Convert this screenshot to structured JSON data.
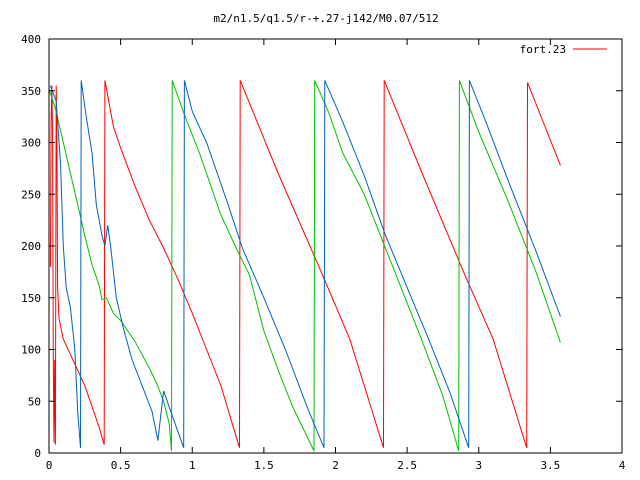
{
  "chart_data": {
    "type": "line",
    "title": "m2/n1.5/q1.5/r-+.27-j142/M0.07/512",
    "xlabel": "",
    "ylabel": "",
    "xlim": [
      0,
      4
    ],
    "ylim": [
      0,
      400
    ],
    "x_ticks": [
      "0",
      "0.5",
      "1",
      "1.5",
      "2",
      "2.5",
      "3",
      "3.5",
      "4"
    ],
    "y_ticks": [
      "0",
      "50",
      "100",
      "150",
      "200",
      "250",
      "300",
      "350",
      "400"
    ],
    "grid": false,
    "legend_position": "top-right",
    "legend": [
      {
        "label": "fort.23",
        "color": "#ff0000"
      }
    ],
    "series": [
      {
        "color": "#ff0000",
        "points": [
          [
            0.01,
            180
          ],
          [
            0.015,
            320
          ],
          [
            0.02,
            355
          ],
          [
            0.025,
            300
          ],
          [
            0.03,
            90
          ],
          [
            0.035,
            10
          ],
          [
            0.04,
            90
          ],
          [
            0.045,
            8
          ],
          [
            0.05,
            355
          ],
          [
            0.055,
            300
          ],
          [
            0.06,
            160
          ],
          [
            0.07,
            130
          ],
          [
            0.1,
            110
          ],
          [
            0.15,
            95
          ],
          [
            0.2,
            80
          ],
          [
            0.25,
            65
          ],
          [
            0.3,
            45
          ],
          [
            0.35,
            25
          ],
          [
            0.385,
            8
          ],
          [
            0.39,
            360
          ],
          [
            0.45,
            315
          ],
          [
            0.5,
            295
          ],
          [
            0.6,
            258
          ],
          [
            0.7,
            225
          ],
          [
            0.8,
            198
          ],
          [
            0.9,
            168
          ],
          [
            1.0,
            135
          ],
          [
            1.1,
            100
          ],
          [
            1.2,
            65
          ],
          [
            1.33,
            5
          ],
          [
            1.335,
            360
          ],
          [
            1.6,
            270
          ],
          [
            1.9,
            175
          ],
          [
            2.1,
            110
          ],
          [
            2.335,
            5
          ],
          [
            2.34,
            360
          ],
          [
            2.6,
            272
          ],
          [
            2.9,
            173
          ],
          [
            3.1,
            110
          ],
          [
            3.335,
            5
          ],
          [
            3.34,
            358
          ],
          [
            3.57,
            278
          ]
        ]
      },
      {
        "color": "#00c000",
        "points": [
          [
            0.0,
            352
          ],
          [
            0.05,
            330
          ],
          [
            0.1,
            300
          ],
          [
            0.15,
            270
          ],
          [
            0.2,
            240
          ],
          [
            0.25,
            210
          ],
          [
            0.3,
            182
          ],
          [
            0.35,
            162
          ],
          [
            0.37,
            148
          ],
          [
            0.4,
            150
          ],
          [
            0.45,
            135
          ],
          [
            0.5,
            128
          ],
          [
            0.55,
            118
          ],
          [
            0.6,
            108
          ],
          [
            0.65,
            95
          ],
          [
            0.7,
            82
          ],
          [
            0.75,
            68
          ],
          [
            0.8,
            50
          ],
          [
            0.84,
            28
          ],
          [
            0.855,
            2
          ],
          [
            0.86,
            360
          ],
          [
            0.95,
            325
          ],
          [
            1.05,
            290
          ],
          [
            1.2,
            230
          ],
          [
            1.3,
            200
          ],
          [
            1.4,
            172
          ],
          [
            1.5,
            118
          ],
          [
            1.6,
            80
          ],
          [
            1.7,
            45
          ],
          [
            1.85,
            2
          ],
          [
            1.855,
            360
          ],
          [
            1.95,
            330
          ],
          [
            2.05,
            290
          ],
          [
            2.2,
            250
          ],
          [
            2.4,
            180
          ],
          [
            2.5,
            145
          ],
          [
            2.6,
            110
          ],
          [
            2.75,
            55
          ],
          [
            2.86,
            2
          ],
          [
            2.865,
            360
          ],
          [
            3.0,
            310
          ],
          [
            3.2,
            245
          ],
          [
            3.4,
            175
          ],
          [
            3.57,
            107
          ]
        ]
      },
      {
        "color": "#0060c0",
        "points": [
          [
            0.01,
            355
          ],
          [
            0.05,
            340
          ],
          [
            0.08,
            280
          ],
          [
            0.1,
            200
          ],
          [
            0.12,
            160
          ],
          [
            0.15,
            140
          ],
          [
            0.18,
            100
          ],
          [
            0.2,
            40
          ],
          [
            0.22,
            5
          ],
          [
            0.225,
            360
          ],
          [
            0.26,
            325
          ],
          [
            0.3,
            290
          ],
          [
            0.33,
            240
          ],
          [
            0.37,
            210
          ],
          [
            0.39,
            200
          ],
          [
            0.41,
            220
          ],
          [
            0.43,
            200
          ],
          [
            0.47,
            150
          ],
          [
            0.52,
            120
          ],
          [
            0.58,
            90
          ],
          [
            0.65,
            65
          ],
          [
            0.72,
            40
          ],
          [
            0.76,
            12
          ],
          [
            0.8,
            60
          ],
          [
            0.85,
            40
          ],
          [
            0.94,
            5
          ],
          [
            0.945,
            360
          ],
          [
            1.0,
            330
          ],
          [
            1.1,
            300
          ],
          [
            1.25,
            240
          ],
          [
            1.35,
            198
          ],
          [
            1.5,
            150
          ],
          [
            1.65,
            100
          ],
          [
            1.8,
            45
          ],
          [
            1.92,
            5
          ],
          [
            1.925,
            360
          ],
          [
            2.05,
            320
          ],
          [
            2.2,
            268
          ],
          [
            2.35,
            210
          ],
          [
            2.5,
            160
          ],
          [
            2.65,
            110
          ],
          [
            2.8,
            58
          ],
          [
            2.93,
            5
          ],
          [
            2.935,
            360
          ],
          [
            3.05,
            320
          ],
          [
            3.2,
            265
          ],
          [
            3.4,
            195
          ],
          [
            3.57,
            132
          ]
        ]
      }
    ]
  }
}
